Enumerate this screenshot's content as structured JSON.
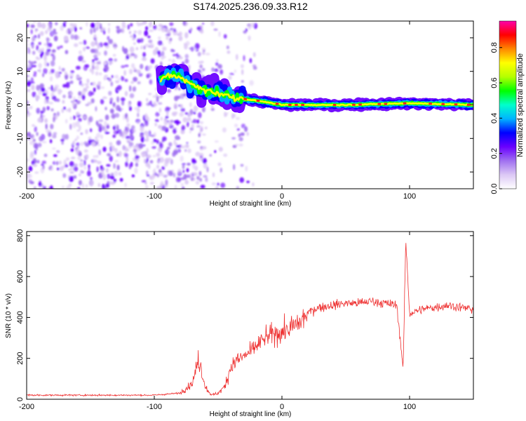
{
  "chart_data": [
    {
      "type": "heatmap",
      "title": "S174.2025.236.09.33.R12",
      "xlabel": "Height of straight line (km)",
      "ylabel": "Frequency (Hz)",
      "xlim": [
        -200,
        150
      ],
      "ylim": [
        -25,
        25
      ],
      "xticks": [
        -200,
        -100,
        0,
        100
      ],
      "yticks": [
        -20,
        -10,
        0,
        10,
        20
      ],
      "colorbar": {
        "label": "Normalized spectral amplitude",
        "range": [
          0,
          0.95
        ],
        "ticks": [
          "0.0",
          "0.2",
          "0.4",
          "0.6",
          "0.8"
        ],
        "colormap": [
          "#ffffff",
          "#dcc8f5",
          "#a070f0",
          "#6a00ff",
          "#0000ff",
          "#00b4ff",
          "#00ffcc",
          "#00ff00",
          "#b4ff00",
          "#ffff00",
          "#ff8800",
          "#ff0000",
          "#ff00aa"
        ]
      },
      "ridge": {
        "description_of_data": "dominant frequency track versus height",
        "points": [
          {
            "x": -95,
            "y": 8
          },
          {
            "x": -85,
            "y": 9
          },
          {
            "x": -75,
            "y": 7
          },
          {
            "x": -65,
            "y": 5
          },
          {
            "x": -55,
            "y": 4
          },
          {
            "x": -45,
            "y": 3
          },
          {
            "x": -35,
            "y": 2
          },
          {
            "x": -25,
            "y": 1.5
          },
          {
            "x": -15,
            "y": 1
          },
          {
            "x": 0,
            "y": 0
          },
          {
            "x": 50,
            "y": 0
          },
          {
            "x": 100,
            "y": 0.5
          },
          {
            "x": 150,
            "y": 0
          }
        ],
        "noise_region": [
          -200,
          -60
        ]
      }
    },
    {
      "type": "line",
      "xlabel": "Height of straight line (km)",
      "ylabel": "SNR (10 * v/v)",
      "xlim": [
        -200,
        150
      ],
      "ylim": [
        0,
        820
      ],
      "xticks": [
        -200,
        -100,
        0,
        100
      ],
      "yticks": [
        0,
        200,
        400,
        600,
        800
      ],
      "series": [
        {
          "name": "SNR",
          "color": "#ee3030",
          "x": [
            -200,
            -150,
            -100,
            -80,
            -70,
            -65,
            -60,
            -55,
            -50,
            -45,
            -40,
            -35,
            -30,
            -25,
            -20,
            -15,
            -10,
            -5,
            0,
            5,
            10,
            15,
            20,
            25,
            30,
            40,
            50,
            60,
            70,
            80,
            90,
            95,
            97,
            100,
            110,
            120,
            130,
            140,
            150
          ],
          "y": [
            20,
            20,
            20,
            30,
            80,
            200,
            60,
            20,
            30,
            60,
            160,
            190,
            210,
            230,
            260,
            290,
            310,
            320,
            330,
            340,
            360,
            380,
            420,
            440,
            450,
            460,
            470,
            470,
            480,
            470,
            460,
            150,
            780,
            420,
            440,
            450,
            460,
            450,
            440
          ]
        }
      ]
    }
  ]
}
